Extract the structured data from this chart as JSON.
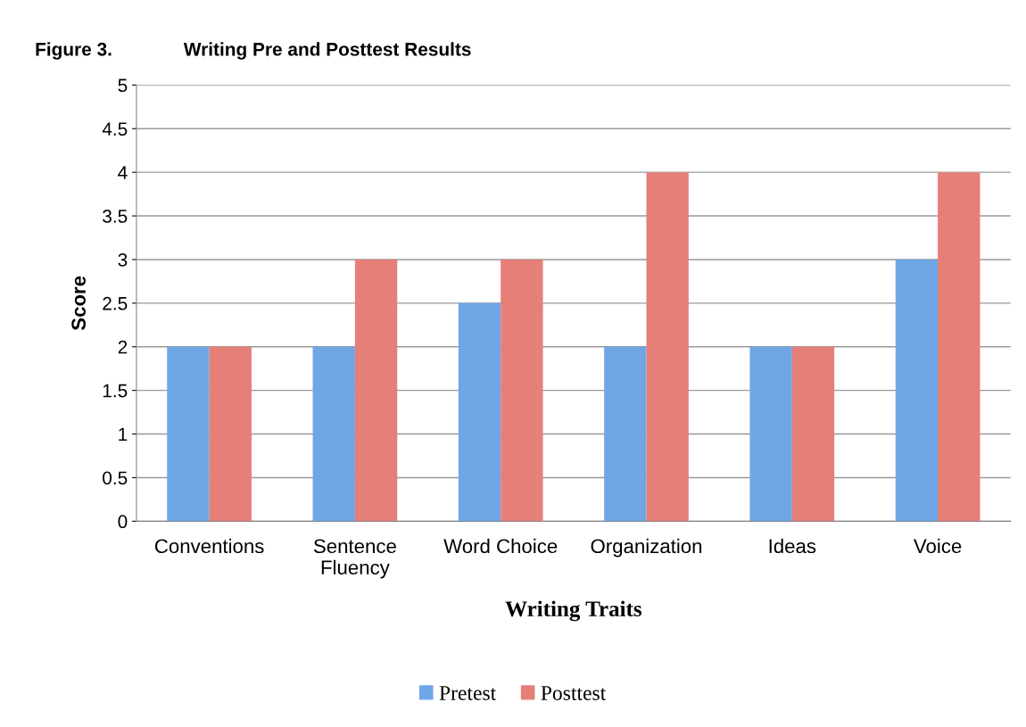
{
  "chart_data": {
    "type": "bar",
    "title": "Figure 3.",
    "subtitle": "Writing Pre and Posttest Results",
    "xlabel": "Writing Traits",
    "ylabel": "Score",
    "categories": [
      "Conventions",
      "Sentence\nFluency",
      "Word Choice",
      "Organization",
      "Ideas",
      "Voice"
    ],
    "series": [
      {
        "name": "Pretest",
        "color": "#6fa6e6",
        "values": [
          2,
          2,
          2.5,
          2,
          2,
          3
        ]
      },
      {
        "name": "Posttest",
        "color": "#e57f78",
        "values": [
          2,
          3,
          3,
          4,
          2,
          4
        ]
      }
    ],
    "ylim": [
      0,
      5
    ],
    "yticks": [
      0,
      0.5,
      1,
      1.5,
      2,
      2.5,
      3,
      3.5,
      4,
      4.5,
      5
    ],
    "grid": "y",
    "legend": "bottom"
  }
}
